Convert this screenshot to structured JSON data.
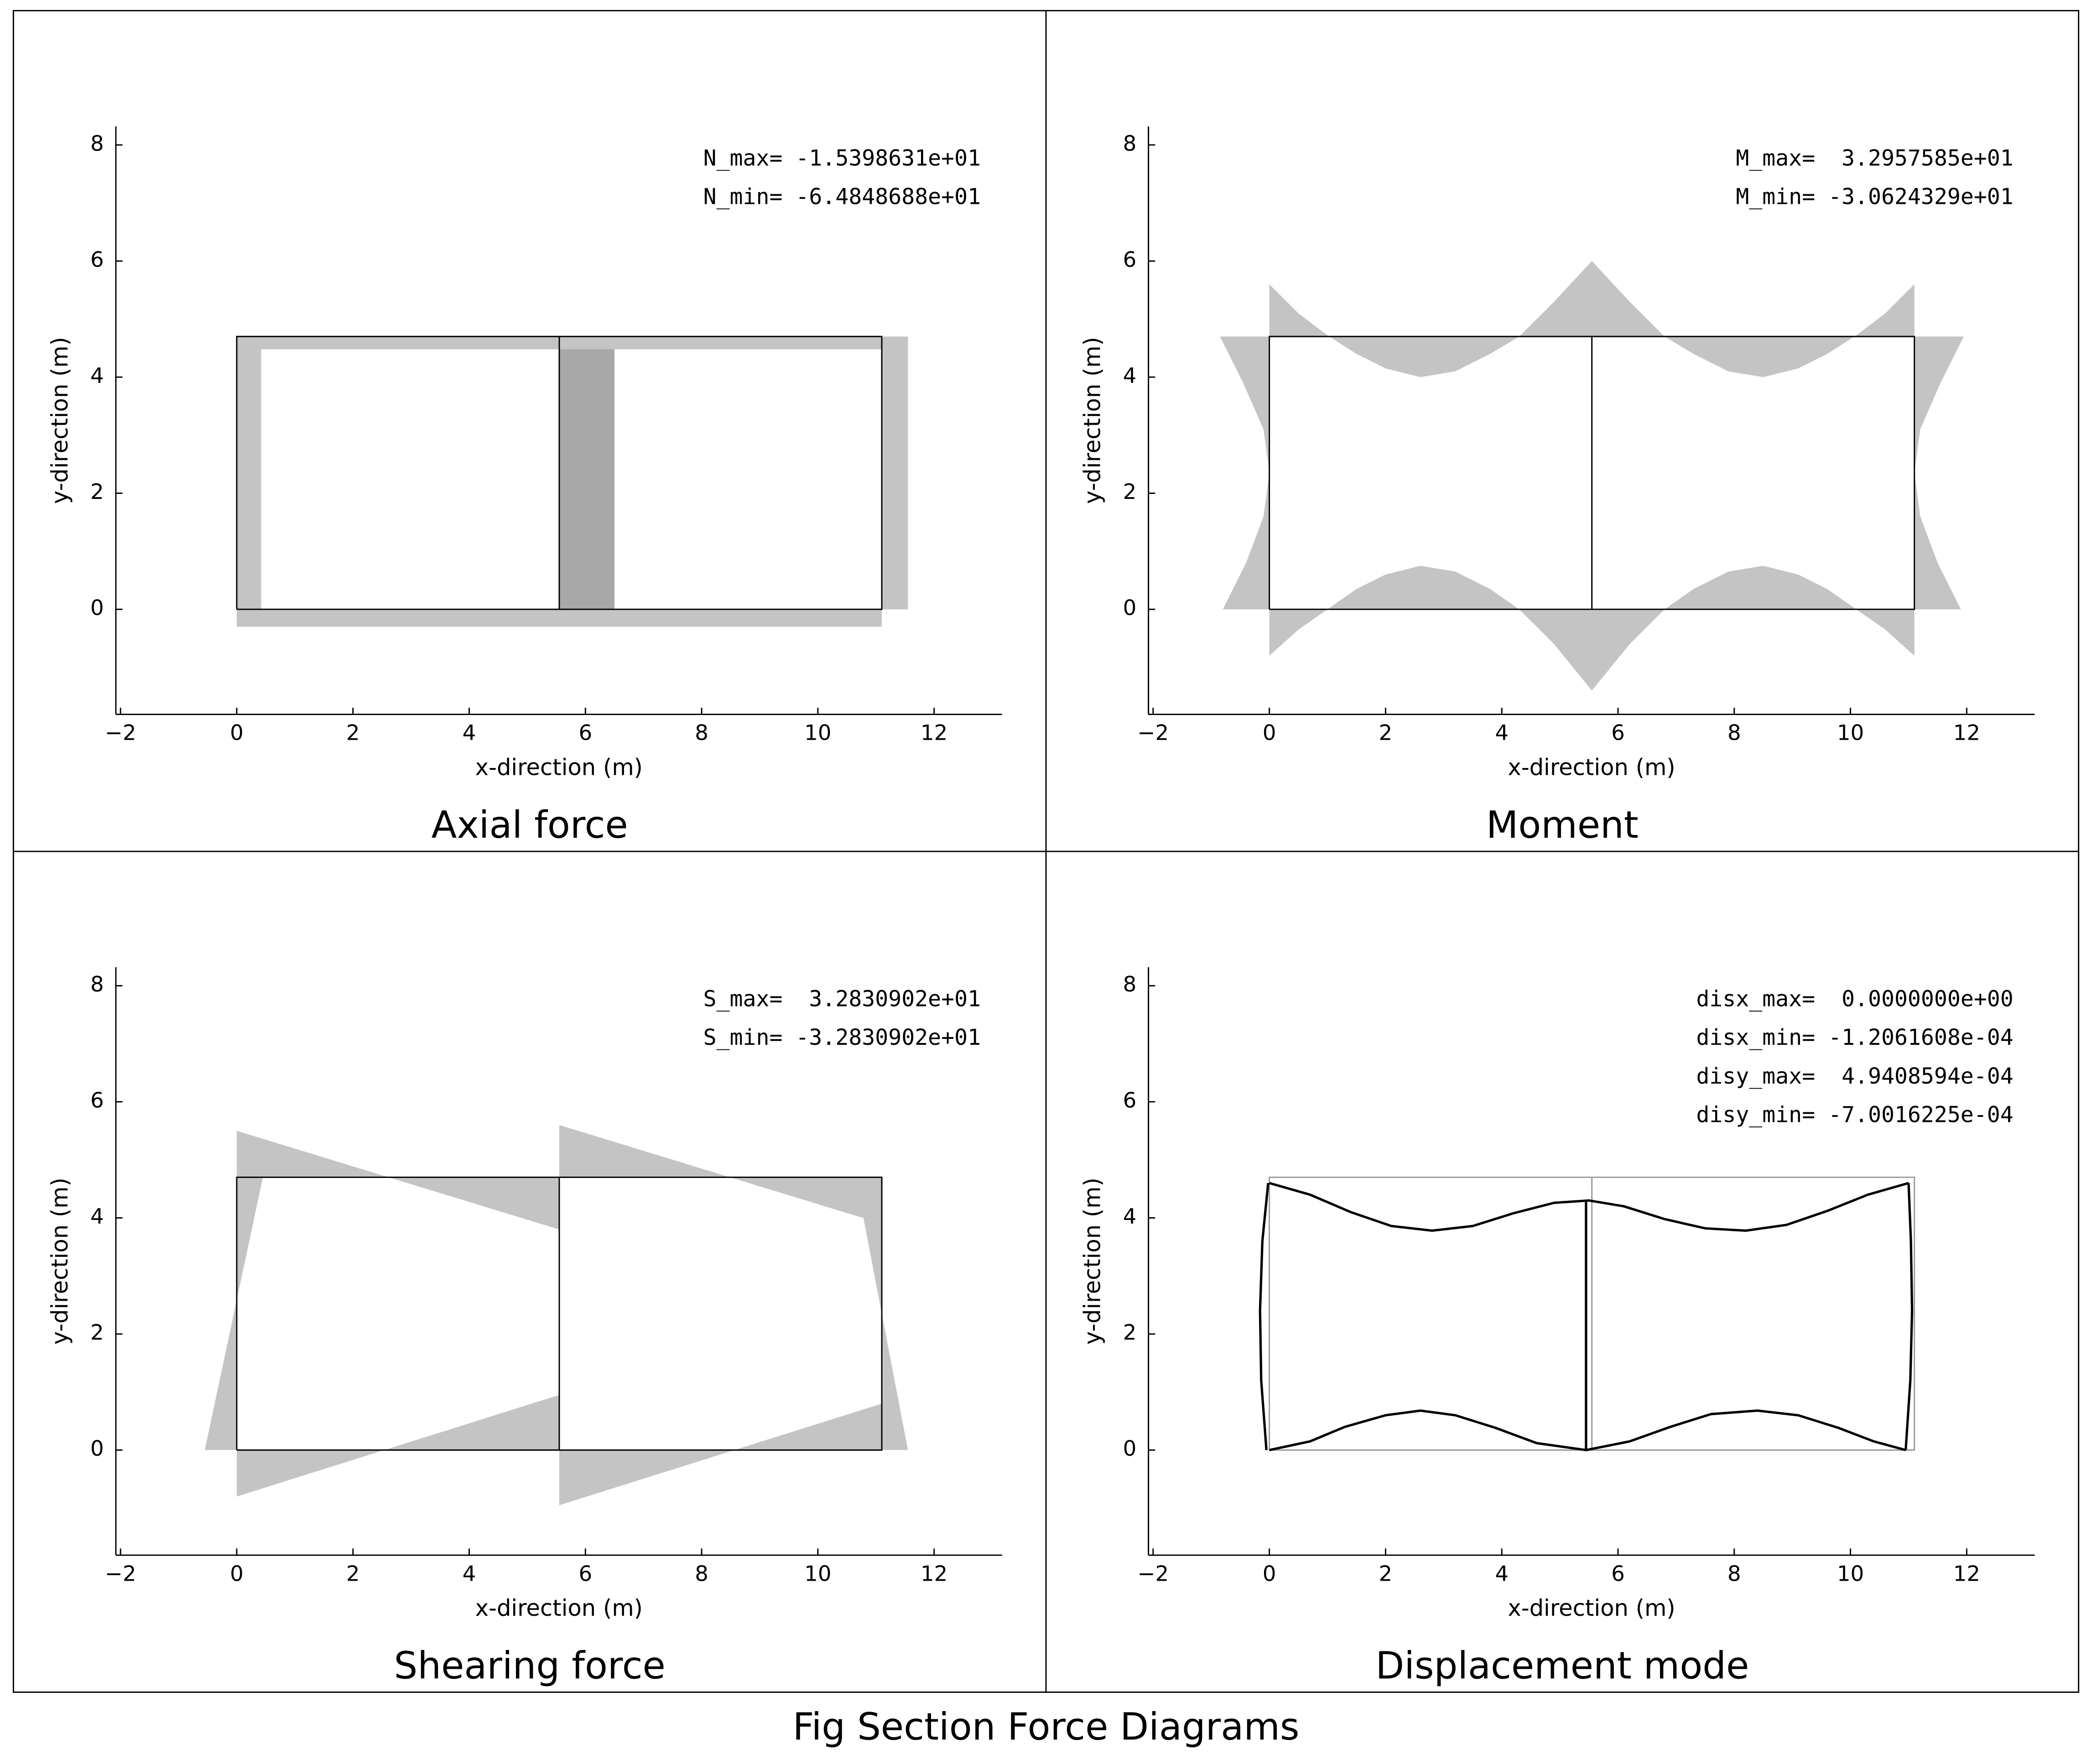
{
  "figure_title": "Fig Section Force Diagrams",
  "chart_data": [
    {
      "type": "frame",
      "caption": "Axial force",
      "xlabel": "x-direction (m)",
      "ylabel": "y-direction (m)",
      "xlim": [
        -2.08,
        13.17
      ],
      "ylim": [
        -1.81,
        8.32
      ],
      "xticks": [
        {
          "value": -2,
          "label": "−2"
        },
        0,
        2,
        4,
        6,
        8,
        10,
        12
      ],
      "yticks": [
        0,
        2,
        4,
        6,
        8
      ],
      "annotations": [
        "N_max= -1.5398631e+01",
        "N_min= -6.4848688e+01"
      ],
      "series": [
        {
          "fill": "#c4c4c4",
          "x": [
            0,
            0.42,
            0.42,
            0
          ],
          "y": [
            0,
            0,
            4.7,
            4.7
          ]
        },
        {
          "fill": "#a8a8a8",
          "x": [
            5.55,
            6.5,
            6.5,
            5.55
          ],
          "y": [
            0,
            0,
            4.7,
            4.7
          ]
        },
        {
          "fill": "#c4c4c4",
          "x": [
            11.1,
            11.55,
            11.55,
            11.1
          ],
          "y": [
            0,
            0,
            4.7,
            4.7
          ]
        },
        {
          "fill": "#c4c4c4",
          "x": [
            0,
            11.1,
            11.1,
            0
          ],
          "y": [
            4.7,
            4.7,
            4.48,
            4.48
          ]
        },
        {
          "fill": "#c4c4c4",
          "x": [
            0,
            11.1,
            11.1,
            0
          ],
          "y": [
            0,
            0,
            -0.3,
            -0.3
          ]
        },
        {
          "color": "#000000",
          "x": [
            0,
            11.1,
            11.1,
            0,
            0
          ],
          "y": [
            0,
            0,
            4.7,
            4.7,
            0
          ]
        },
        {
          "color": "#000000",
          "x": [
            5.55,
            5.55
          ],
          "y": [
            0,
            4.7
          ]
        }
      ]
    },
    {
      "type": "frame",
      "caption": "Moment",
      "xlabel": "x-direction (m)",
      "ylabel": "y-direction (m)",
      "xlim": [
        -2.08,
        13.17
      ],
      "ylim": [
        -1.81,
        8.32
      ],
      "xticks": [
        {
          "value": -2,
          "label": "−2"
        },
        0,
        2,
        4,
        6,
        8,
        10,
        12
      ],
      "yticks": [
        0,
        2,
        4,
        6,
        8
      ],
      "annotations": [
        "M_max=  3.2957585e+01",
        "M_min= -3.0624329e+01"
      ],
      "series": [
        {
          "fill": "#c4c4c4",
          "x": [
            0,
            0,
            0.5,
            1,
            1.5,
            2,
            2.6,
            3.2,
            3.8,
            4.3,
            4.9,
            5.55,
            6.2,
            6.8,
            7.3,
            7.9,
            8.5,
            9.1,
            9.6,
            10.1,
            10.6,
            11.1,
            11.1
          ],
          "y": [
            4.7,
            5.6,
            5.1,
            4.72,
            4.4,
            4.15,
            4.0,
            4.1,
            4.4,
            4.7,
            5.3,
            6.0,
            5.3,
            4.7,
            4.4,
            4.1,
            4.0,
            4.15,
            4.4,
            4.72,
            5.1,
            5.6,
            4.7
          ]
        },
        {
          "fill": "#c4c4c4",
          "x": [
            0,
            0,
            0.5,
            1,
            1.5,
            2,
            2.6,
            3.2,
            3.8,
            4.3,
            4.9,
            5.55,
            6.2,
            6.8,
            7.3,
            7.9,
            8.5,
            9.1,
            9.6,
            10.1,
            10.6,
            11.1,
            11.1
          ],
          "y": [
            0,
            -0.8,
            -0.35,
            0,
            0.35,
            0.6,
            0.75,
            0.65,
            0.35,
            0,
            -0.6,
            -1.4,
            -0.6,
            0,
            0.35,
            0.65,
            0.75,
            0.6,
            0.35,
            0,
            -0.35,
            -0.8,
            0
          ]
        },
        {
          "fill": "#c4c4c4",
          "x": [
            0,
            -0.8,
            -0.4,
            -0.1,
            0,
            -0.1,
            -0.45,
            -0.85,
            0
          ],
          "y": [
            0,
            0,
            0.8,
            1.6,
            2.35,
            3.1,
            3.9,
            4.7,
            4.7
          ]
        },
        {
          "fill": "#c4c4c4",
          "x": [
            11.1,
            11.9,
            11.5,
            11.2,
            11.1,
            11.2,
            11.55,
            11.95,
            11.1
          ],
          "y": [
            0,
            0,
            0.8,
            1.6,
            2.35,
            3.1,
            3.9,
            4.7,
            4.7
          ]
        },
        {
          "color": "#000000",
          "x": [
            0,
            11.1,
            11.1,
            0,
            0
          ],
          "y": [
            0,
            0,
            4.7,
            4.7,
            0
          ]
        },
        {
          "color": "#000000",
          "x": [
            5.55,
            5.55
          ],
          "y": [
            0,
            4.7
          ]
        }
      ]
    },
    {
      "type": "frame",
      "caption": "Shearing force",
      "xlabel": "x-direction (m)",
      "ylabel": "y-direction (m)",
      "xlim": [
        -2.08,
        13.17
      ],
      "ylim": [
        -1.81,
        8.32
      ],
      "xticks": [
        {
          "value": -2,
          "label": "−2"
        },
        0,
        2,
        4,
        6,
        8,
        10,
        12
      ],
      "yticks": [
        0,
        2,
        4,
        6,
        8
      ],
      "annotations": [
        "S_max=  3.2830902e+01",
        "S_min= -3.2830902e+01"
      ],
      "series": [
        {
          "fill": "#c4c4c4",
          "x": [
            0,
            0,
            5.55,
            5.55
          ],
          "y": [
            4.7,
            5.5,
            3.8,
            4.7
          ]
        },
        {
          "fill": "#c4c4c4",
          "x": [
            5.55,
            5.55,
            11.1,
            11.1
          ],
          "y": [
            4.7,
            5.6,
            3.9,
            4.7
          ]
        },
        {
          "fill": "#c4c4c4",
          "x": [
            0,
            0,
            5.55,
            5.55
          ],
          "y": [
            0,
            -0.8,
            0.95,
            0
          ]
        },
        {
          "fill": "#c4c4c4",
          "x": [
            5.55,
            5.55,
            11.1,
            11.1
          ],
          "y": [
            0,
            -0.95,
            0.8,
            0
          ]
        },
        {
          "fill": "#c4c4c4",
          "x": [
            0,
            -0.55,
            0.45,
            0
          ],
          "y": [
            0,
            0,
            4.7,
            4.7
          ]
        },
        {
          "fill": "#c4c4c4",
          "x": [
            11.1,
            11.55,
            10.65,
            11.1
          ],
          "y": [
            0,
            0,
            4.7,
            4.7
          ]
        },
        {
          "color": "#000000",
          "x": [
            0,
            11.1,
            11.1,
            0,
            0
          ],
          "y": [
            0,
            0,
            4.7,
            4.7,
            0
          ]
        },
        {
          "color": "#000000",
          "x": [
            5.55,
            5.55
          ],
          "y": [
            0,
            4.7
          ]
        }
      ]
    },
    {
      "type": "frame",
      "caption": "Displacement mode",
      "xlabel": "x-direction (m)",
      "ylabel": "y-direction (m)",
      "xlim": [
        -2.08,
        13.17
      ],
      "ylim": [
        -1.81,
        8.32
      ],
      "xticks": [
        {
          "value": -2,
          "label": "−2"
        },
        0,
        2,
        4,
        6,
        8,
        10,
        12
      ],
      "yticks": [
        0,
        2,
        4,
        6,
        8
      ],
      "annotations": [
        "disx_max=  0.0000000e+00",
        "disx_min= -1.2061608e-04",
        "disy_max=  4.9408594e-04",
        "disy_min= -7.0016225e-04"
      ],
      "series": [
        {
          "color": "#999999",
          "x": [
            0,
            11.1,
            11.1,
            0,
            0
          ],
          "y": [
            0,
            0,
            4.7,
            4.7,
            0
          ]
        },
        {
          "color": "#999999",
          "x": [
            5.55,
            5.55
          ],
          "y": [
            0,
            4.7
          ]
        },
        {
          "color": "#000000",
          "x": [
            0,
            0.7,
            1.4,
            2.1,
            2.8,
            3.5,
            4.2,
            4.9,
            5.5,
            6.1,
            6.8,
            7.5,
            8.2,
            8.9,
            9.6,
            10.3,
            11.0
          ],
          "y": [
            4.6,
            4.4,
            4.1,
            3.86,
            3.78,
            3.86,
            4.08,
            4.26,
            4.3,
            4.2,
            3.98,
            3.82,
            3.78,
            3.88,
            4.12,
            4.4,
            4.6
          ]
        },
        {
          "color": "#000000",
          "x": [
            0,
            0.7,
            1.3,
            2.0,
            2.6,
            3.2,
            3.9,
            4.6,
            5.45,
            6.2,
            6.9,
            7.6,
            8.4,
            9.1,
            9.8,
            10.4,
            10.95
          ],
          "y": [
            0,
            0.15,
            0.4,
            0.6,
            0.68,
            0.6,
            0.38,
            0.12,
            0,
            0.15,
            0.4,
            0.62,
            0.68,
            0.6,
            0.38,
            0.15,
            0
          ]
        },
        {
          "color": "#000000",
          "x": [
            -0.05,
            -0.14,
            -0.16,
            -0.12,
            -0.02
          ],
          "y": [
            0,
            1.2,
            2.4,
            3.6,
            4.6
          ]
        },
        {
          "color": "#000000",
          "x": [
            5.45,
            5.45
          ],
          "y": [
            0,
            4.3
          ]
        },
        {
          "color": "#000000",
          "x": [
            10.95,
            11.03,
            11.06,
            11.04,
            11.0
          ],
          "y": [
            0,
            1.2,
            2.4,
            3.6,
            4.6
          ]
        }
      ]
    }
  ]
}
